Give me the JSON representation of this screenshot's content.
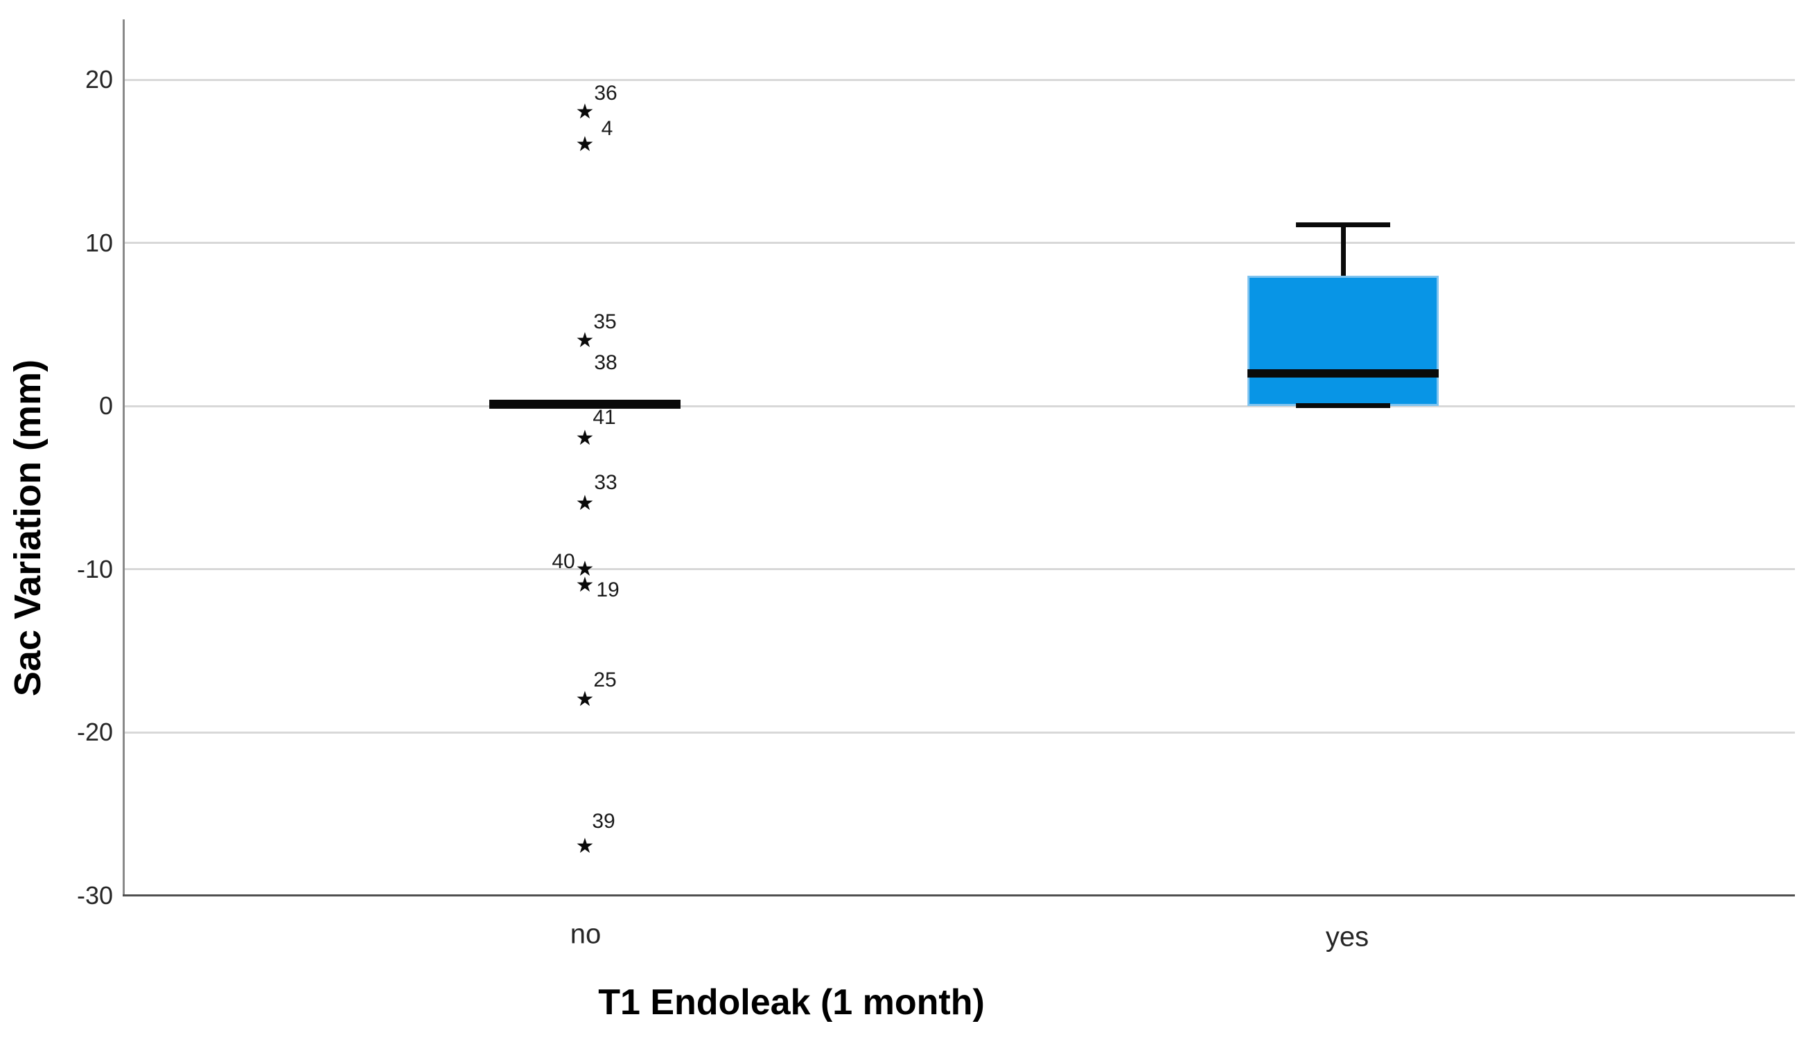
{
  "chart_data": {
    "type": "boxplot",
    "title": "",
    "xlabel": "T1 Endoleak (1 month)",
    "ylabel": "Sac Variation (mm)",
    "ylim": [
      -30,
      24
    ],
    "y_ticks": [
      20,
      10,
      0,
      -10,
      -20,
      -30
    ],
    "grid": "horizontal",
    "legend": "none",
    "categories": [
      "no",
      "yes"
    ],
    "marker": "black-star-extreme-value",
    "colors": {
      "box_fill": "#0895e6",
      "box_border": "#7fc3ef",
      "line_black": "#0a0a0a",
      "gridline": "#d8d8d8",
      "y_axis_line": "#898989",
      "x_axis_line": "#4f4f4f",
      "tick_text": "#262626"
    },
    "series": [
      {
        "category": "no",
        "whisker_low": 0,
        "q1": 0,
        "median": 0,
        "q3": 0,
        "whisker_high": 0,
        "box_collapsed_to_median_line": true,
        "outliers": [
          {
            "label": "36",
            "value": 18
          },
          {
            "label": "4",
            "value": 16
          },
          {
            "label": "35",
            "value": 4
          },
          {
            "label": "38",
            "value": 4,
            "marker_hidden": true
          },
          {
            "label": "41",
            "value": -2
          },
          {
            "label": "33",
            "value": -6
          },
          {
            "label": "40",
            "value": -10
          },
          {
            "label": "19",
            "value": -11
          },
          {
            "label": "25",
            "value": -18
          },
          {
            "label": "39",
            "value": -27
          }
        ]
      },
      {
        "category": "yes",
        "whisker_low": 0,
        "q1": 0,
        "median": 2,
        "q3": 8,
        "whisker_high": 11,
        "box_collapsed_to_median_line": false,
        "outliers": []
      }
    ]
  }
}
